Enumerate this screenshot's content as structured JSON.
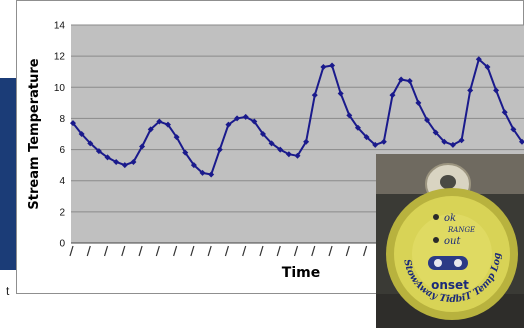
{
  "chart_data": {
    "type": "line",
    "title": "",
    "xlabel": "Time",
    "ylabel": "Stream Temperature",
    "ylim": [
      0,
      14
    ],
    "yticks": [
      0,
      2,
      4,
      6,
      8,
      10,
      12,
      14
    ],
    "grid": "horizontal",
    "legend": "none",
    "x_ticks_note": "unreadable",
    "series": [
      {
        "color": "#1a1a8c",
        "marker": "diamond",
        "values": [
          7.7,
          7.0,
          6.4,
          5.9,
          5.5,
          5.2,
          5.0,
          5.2,
          6.2,
          7.3,
          7.8,
          7.6,
          6.8,
          5.8,
          5.0,
          4.5,
          4.4,
          6.0,
          7.6,
          8.0,
          8.1,
          7.8,
          7.0,
          6.4,
          6.0,
          5.7,
          5.6,
          6.5,
          9.5,
          11.3,
          11.4,
          9.6,
          8.2,
          7.4,
          6.8,
          6.3,
          6.5,
          9.5,
          10.5,
          10.4,
          9.0,
          7.9,
          7.1,
          6.5,
          6.3,
          6.6,
          9.8,
          11.8,
          11.3,
          9.8,
          8.4,
          7.3,
          6.5
        ]
      }
    ]
  },
  "photo": {
    "device_labels": [
      "ok",
      "RANGE",
      "out"
    ],
    "device_text_bottom": "onset",
    "device_text_ring": "StowAway TidbiT Temp Logger"
  },
  "misc": {
    "stray_letter": "t"
  },
  "colors": {
    "plot_bg": "#c0c0c0",
    "line": "#1a1a8c",
    "left_strip": "#1b3c77"
  }
}
